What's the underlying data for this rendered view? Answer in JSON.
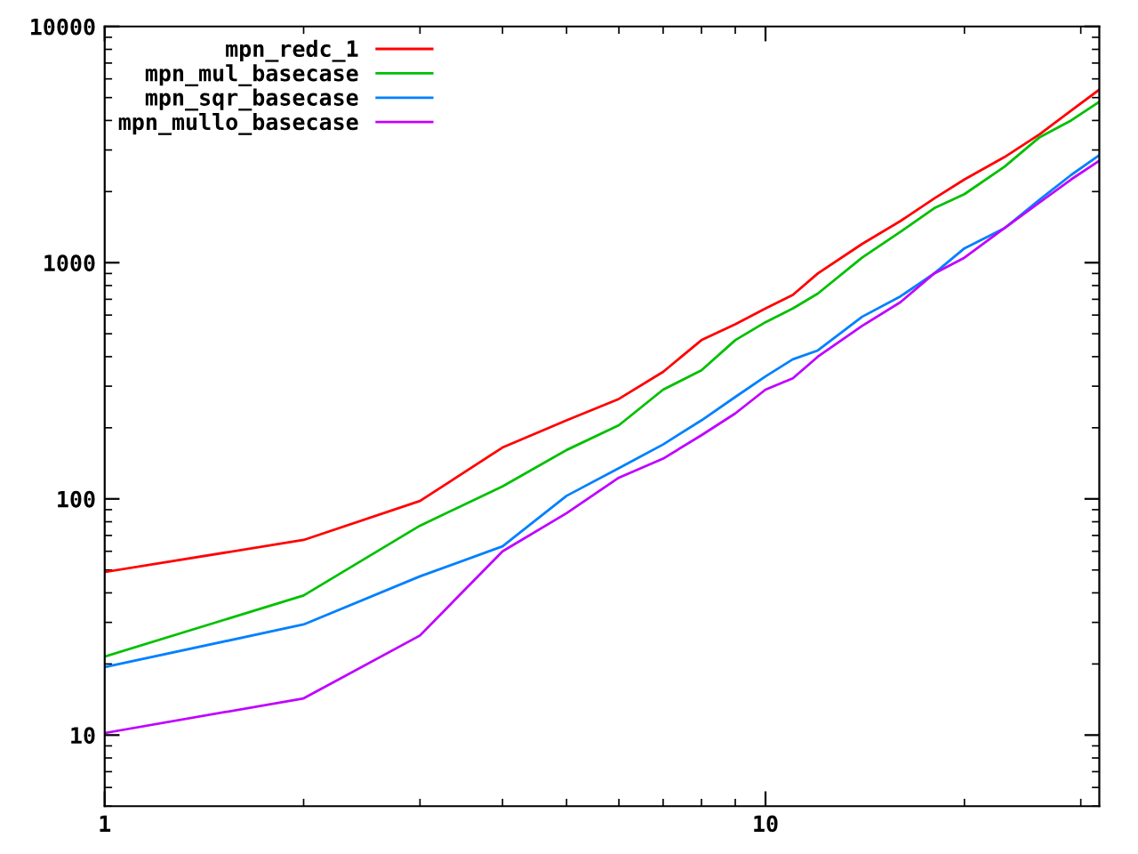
{
  "chart_data": {
    "type": "line",
    "log": "xy",
    "xlim": [
      1,
      32
    ],
    "ylim": [
      5,
      10000
    ],
    "xticks": [
      1,
      10
    ],
    "yticks": [
      10,
      100,
      1000,
      10000
    ],
    "grid": false,
    "legend": "top left",
    "marker": "none",
    "line_style": "solid",
    "x": [
      1,
      2,
      3,
      4,
      5,
      6,
      7,
      8,
      9,
      10,
      11,
      12,
      14,
      16,
      18,
      20,
      23,
      26,
      29,
      32
    ],
    "series": [
      {
        "name": "mpn_redc_1",
        "color": "#ff0000",
        "values": [
          49,
          67,
          98,
          165,
          215,
          265,
          345,
          470,
          549,
          640,
          730,
          900,
          1200,
          1500,
          1870,
          2250,
          2800,
          3500,
          4400,
          5400
        ]
      },
      {
        "name": "mpn_mul_basecase",
        "color": "#00c000",
        "values": [
          21.5,
          39,
          77,
          113,
          161,
          205,
          290,
          350,
          470,
          560,
          640,
          740,
          1050,
          1350,
          1700,
          1950,
          2550,
          3400,
          4000,
          4800
        ]
      },
      {
        "name": "mpn_sqr_basecase",
        "color": "#0080ff",
        "values": [
          19.4,
          29.4,
          47,
          63,
          103,
          135,
          170,
          215,
          270,
          330,
          390,
          425,
          590,
          720,
          900,
          1150,
          1400,
          1850,
          2350,
          2850
        ]
      },
      {
        "name": "mpn_mullo_basecase",
        "color": "#c000ff",
        "values": [
          10.2,
          14.3,
          26.4,
          60,
          87,
          123,
          148,
          186,
          230,
          290,
          324,
          400,
          540,
          680,
          900,
          1050,
          1400,
          1800,
          2250,
          2700
        ]
      }
    ]
  }
}
